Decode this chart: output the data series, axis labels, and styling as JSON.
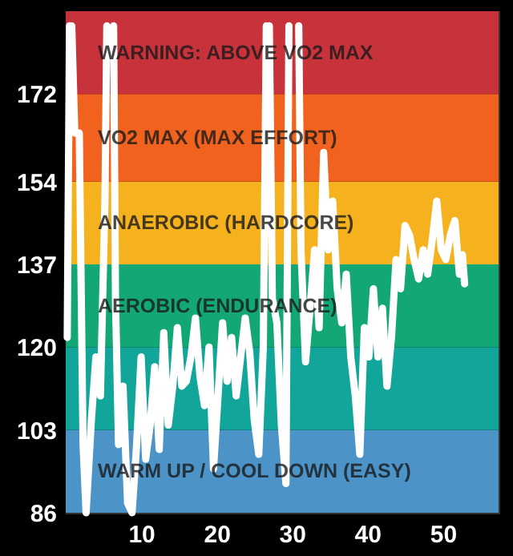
{
  "chart_data": {
    "type": "line",
    "x": [
      0.2,
      0.5,
      0.6,
      0.8,
      1.2,
      1.8,
      2.3,
      2.7,
      3.4,
      4.0,
      4.6,
      5.2,
      5.45,
      5.9,
      6.35,
      6.6,
      7.0,
      7.6,
      8.2,
      8.8,
      9.4,
      10,
      10.6,
      11.2,
      11.8,
      12.4,
      13.0,
      13.6,
      14.2,
      14.8,
      15.4,
      16.0,
      16.6,
      17.2,
      17.8,
      18.4,
      19.0,
      19.6,
      20.2,
      20.8,
      21.4,
      22.0,
      22.6,
      23.2,
      23.8,
      24.4,
      25.0,
      25.6,
      26.2,
      26.6,
      26.8,
      27.0,
      27.4,
      28.0,
      28.6,
      29.2,
      29.6,
      30.2,
      30.9,
      31.2,
      31.8,
      32.4,
      33.0,
      33.6,
      34.2,
      34.8,
      35.4,
      36.0,
      36.6,
      37.2,
      37.8,
      38.4,
      39.0,
      39.6,
      40.2,
      40.8,
      41.4,
      42.0,
      42.6,
      43.2,
      43.8,
      44.4,
      45.0,
      45.6,
      46.2,
      46.8,
      47.4,
      48.0,
      48.6,
      49.2,
      49.8,
      50.4,
      51.0,
      51.6,
      52.2,
      52.6,
      52.9
    ],
    "series": [
      {
        "color": "#ffffff",
        "values": [
          122,
          186,
          null,
          186,
          164,
          164,
          100,
          86,
          105,
          118,
          110,
          150,
          186,
          null,
          186,
          130,
          100,
          112,
          88,
          86,
          100,
          118,
          97,
          104,
          116,
          99,
          123,
          104,
          112,
          124,
          112,
          113,
          118,
          126,
          114,
          108,
          120,
          95,
          110,
          125,
          113,
          122,
          110,
          118,
          126,
          119,
          105,
          98,
          120,
          186,
          null,
          186,
          130,
          125,
          104,
          92,
          186,
          null,
          186,
          140,
          117,
          128,
          140,
          124,
          160,
          140,
          150,
          132,
          125,
          135,
          118,
          110,
          98,
          124,
          118,
          132,
          118,
          128,
          112,
          122,
          138,
          132,
          145,
          143,
          138,
          134,
          140,
          135,
          142,
          150,
          140,
          138,
          143,
          146,
          135,
          139,
          133
        ]
      }
    ],
    "xlim": [
      0,
      57.4
    ],
    "xticks": [
      10,
      20,
      30,
      40,
      50
    ],
    "ylim": [
      86,
      189
    ],
    "yticks": [
      86,
      103,
      120,
      137,
      154,
      172
    ],
    "bands": [
      {
        "axis": "y",
        "from": 86,
        "to": 103,
        "label": "WARM UP / COOL DOWN (EASY)",
        "color": "#4c93c8"
      },
      {
        "axis": "y",
        "from": 103,
        "to": 120,
        "label": null,
        "color": "#12a59a"
      },
      {
        "axis": "y",
        "from": 120,
        "to": 137,
        "label": "AEROBIC  (ENDURANCE)",
        "color": "#13a873"
      },
      {
        "axis": "y",
        "from": 137,
        "to": 154,
        "label": "ANAEROBIC  (HARDCORE)",
        "color": "#f5b21e"
      },
      {
        "axis": "y",
        "from": 154,
        "to": 172,
        "label": "VO2 MAX  (MAX EFFORT)",
        "color": "#f0621e"
      },
      {
        "axis": "y",
        "from": 172,
        "to": 189,
        "label": "WARNING: ABOVE VO2 MAX",
        "color": "#c8323a"
      }
    ],
    "grid": false,
    "marker": "none",
    "line_style": "solid"
  }
}
